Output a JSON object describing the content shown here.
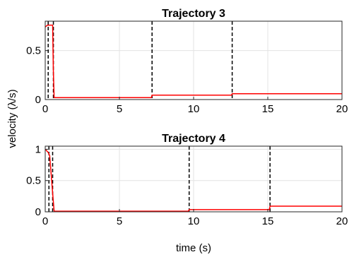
{
  "chart_data": [
    {
      "type": "line",
      "title": "Trajectory 3",
      "xlabel": "",
      "ylabel": "",
      "xlim": [
        0,
        20
      ],
      "ylim": [
        0,
        0.8
      ],
      "xticks": [
        0,
        5,
        10,
        15,
        20
      ],
      "yticks": [
        0,
        0.5
      ],
      "ytick_labels": [
        "0",
        "0.5"
      ],
      "grid": true,
      "series": [
        {
          "color": "#ff0000",
          "x": [
            0,
            0.15,
            0.25,
            0.5,
            0.55,
            0.6,
            7.15,
            7.2,
            12.55,
            12.6,
            20
          ],
          "y": [
            0.74,
            0.76,
            0.76,
            0.76,
            0.3,
            0.02,
            0.02,
            0.045,
            0.045,
            0.06,
            0.06
          ]
        }
      ],
      "vlines": [
        0.2,
        0.55,
        7.2,
        12.6
      ]
    },
    {
      "type": "line",
      "title": "Trajectory 4",
      "xlabel": "time (s)",
      "ylabel": "",
      "xlim": [
        0,
        20
      ],
      "ylim": [
        0,
        1.05
      ],
      "xticks": [
        0,
        5,
        10,
        15,
        20
      ],
      "yticks": [
        0,
        0.5,
        1
      ],
      "ytick_labels": [
        "0",
        "0.5",
        "1"
      ],
      "grid": true,
      "series": [
        {
          "color": "#ff0000",
          "x": [
            0,
            0.2,
            0.3,
            0.5,
            0.6,
            9.65,
            9.7,
            15.1,
            15.15,
            20
          ],
          "y": [
            1.0,
            0.95,
            0.9,
            0.3,
            0.01,
            0.01,
            0.035,
            0.035,
            0.09,
            0.09
          ]
        }
      ],
      "vlines": [
        0.25,
        0.5,
        9.7,
        15.15
      ]
    }
  ],
  "shared_ylabel": "velocity (λ/s)"
}
